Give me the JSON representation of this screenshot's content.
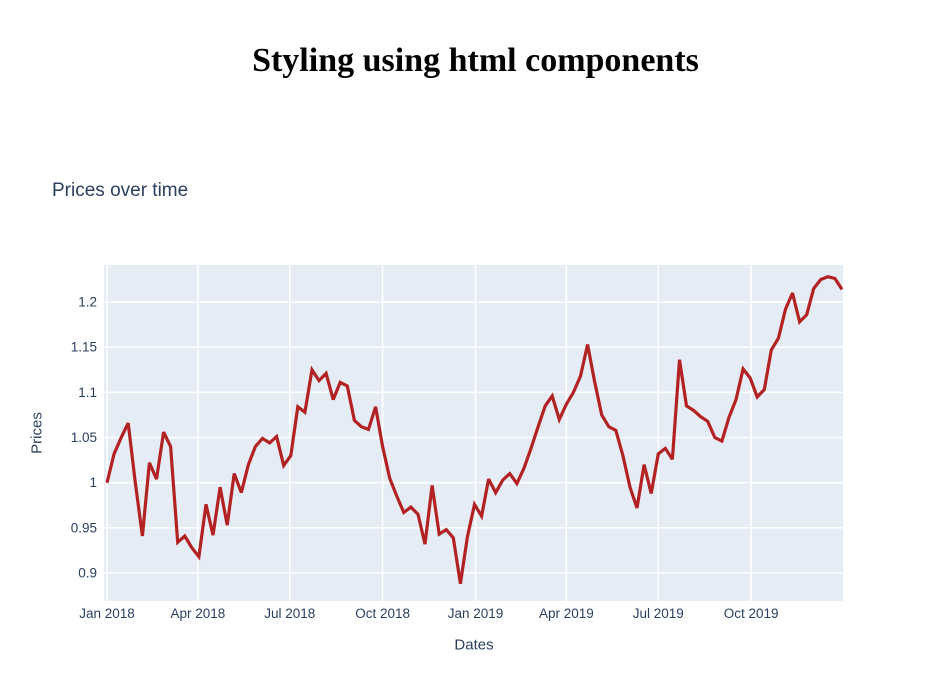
{
  "page": {
    "title": "Styling using html components"
  },
  "chart": {
    "title": "Prices over time",
    "x_axis_title": "Dates",
    "y_axis_title": "Prices"
  },
  "colors": {
    "line": "#b22222",
    "plot_background": "#e5ecf6",
    "gridline": "#ffffff",
    "axis_text": "#2a3f5f",
    "title_text": "#000000"
  },
  "chart_data": {
    "type": "line",
    "title": "Prices over time",
    "xlabel": "Dates",
    "ylabel": "Prices",
    "series_name": "Prices",
    "x_start_date": "2018-01-01",
    "x_step_days": 7,
    "xlim": [
      "2017-12-29",
      "2019-12-31"
    ],
    "ylim": [
      0.869,
      1.241
    ],
    "grid": true,
    "legend": false,
    "xticks": [
      {
        "date": "2018-01-01",
        "label": "Jan 2018"
      },
      {
        "date": "2018-04-01",
        "label": "Apr 2018"
      },
      {
        "date": "2018-07-01",
        "label": "Jul 2018"
      },
      {
        "date": "2018-10-01",
        "label": "Oct 2018"
      },
      {
        "date": "2019-01-01",
        "label": "Jan 2019"
      },
      {
        "date": "2019-04-01",
        "label": "Apr 2019"
      },
      {
        "date": "2019-07-01",
        "label": "Jul 2019"
      },
      {
        "date": "2019-10-01",
        "label": "Oct 2019"
      }
    ],
    "ytick_values": [
      0.9,
      0.95,
      1.0,
      1.05,
      1.1,
      1.15,
      1.2
    ],
    "ytick_labels": [
      "0.9",
      "0.95",
      "1",
      "1.05",
      "1.1",
      "1.15",
      "1.2"
    ],
    "values": [
      1.0,
      1.032,
      1.05,
      1.066,
      1.0,
      0.941,
      1.022,
      1.004,
      1.056,
      1.04,
      0.934,
      0.941,
      0.928,
      0.918,
      0.976,
      0.942,
      0.995,
      0.953,
      1.01,
      0.989,
      1.02,
      1.04,
      1.049,
      1.044,
      1.051,
      1.019,
      1.03,
      1.084,
      1.078,
      1.125,
      1.113,
      1.121,
      1.092,
      1.111,
      1.107,
      1.069,
      1.062,
      1.059,
      1.084,
      1.04,
      1.005,
      0.985,
      0.967,
      0.973,
      0.965,
      0.932,
      0.997,
      0.943,
      0.948,
      0.939,
      0.888,
      0.94,
      0.976,
      0.963,
      1.004,
      0.989,
      1.003,
      1.01,
      0.999,
      1.016,
      1.038,
      1.062,
      1.085,
      1.096,
      1.07,
      1.087,
      1.1,
      1.118,
      1.153,
      1.112,
      1.075,
      1.062,
      1.058,
      1.03,
      0.995,
      0.972,
      1.02,
      0.988,
      1.032,
      1.038,
      1.026,
      1.136,
      1.085,
      1.08,
      1.073,
      1.068,
      1.05,
      1.046,
      1.072,
      1.092,
      1.126,
      1.116,
      1.095,
      1.103,
      1.147,
      1.16,
      1.192,
      1.21,
      1.178,
      1.186,
      1.215,
      1.225,
      1.228,
      1.226,
      1.214
    ]
  }
}
